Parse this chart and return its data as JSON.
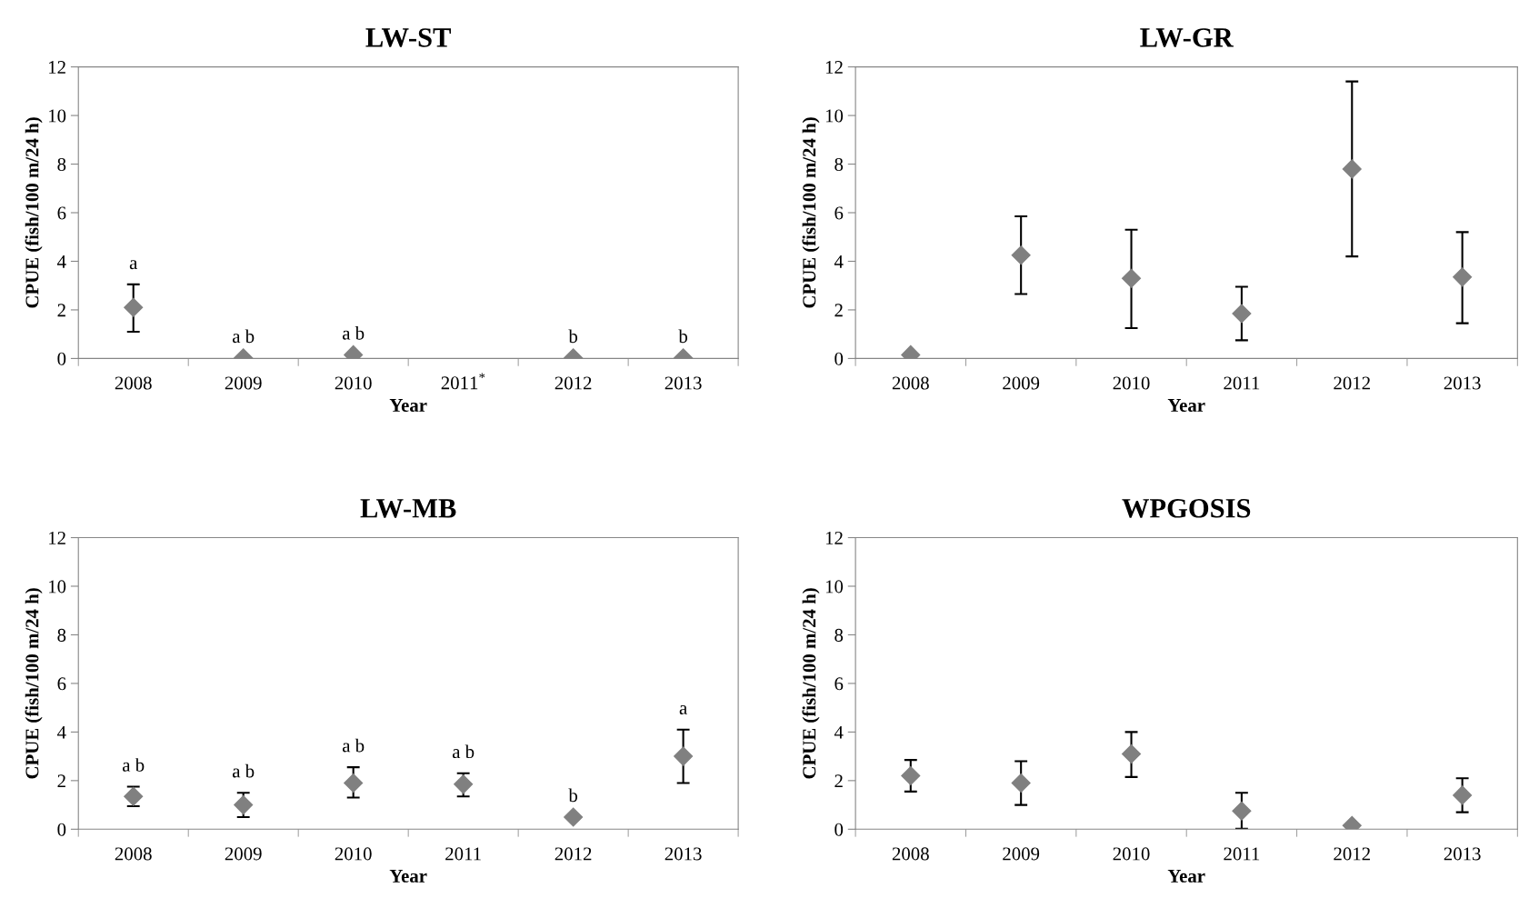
{
  "chart_data": [
    {
      "type": "scatter",
      "title": "LW-ST",
      "xlabel": "Year",
      "ylabel": "CPUE (fish/100 m/24 h)",
      "categories": [
        "2008",
        "2009",
        "2010",
        "2011$^{*}$",
        "2012",
        "2013"
      ],
      "ylim": [
        0,
        12
      ],
      "yticks": [
        0,
        2,
        4,
        6,
        8,
        10,
        12
      ],
      "marker": "diamond",
      "grid": false,
      "legend": false,
      "series": [
        {
          "color": "#808080",
          "values": [
            2.1,
            0.02,
            0.15,
            null,
            0.02,
            0.02
          ],
          "errors": [
            [
              1.1,
              3.05
            ],
            null,
            null,
            null,
            null,
            null
          ],
          "value_labels": [
            "a",
            "a b",
            "a b",
            null,
            "b",
            "b"
          ]
        }
      ]
    },
    {
      "type": "scatter",
      "title": "LW-GR",
      "xlabel": "Year",
      "ylabel": "CPUE (fish/100 m/24 h)",
      "categories": [
        "2008",
        "2009",
        "2010",
        "2011",
        "2012",
        "2013"
      ],
      "ylim": [
        0,
        12
      ],
      "yticks": [
        0,
        2,
        4,
        6,
        8,
        10,
        12
      ],
      "marker": "diamond",
      "grid": false,
      "legend": false,
      "series": [
        {
          "color": "#808080",
          "values": [
            0.15,
            4.25,
            3.3,
            1.85,
            7.8,
            3.35
          ],
          "errors": [
            null,
            [
              2.65,
              5.85
            ],
            [
              1.25,
              5.3
            ],
            [
              0.75,
              2.95
            ],
            [
              4.2,
              11.4
            ],
            [
              1.45,
              5.2
            ]
          ]
        }
      ]
    },
    {
      "type": "scatter",
      "title": "LW-MB",
      "xlabel": "Year",
      "ylabel": "CPUE (fish/100 m/24 h)",
      "categories": [
        "2008",
        "2009",
        "2010",
        "2011",
        "2012",
        "2013"
      ],
      "ylim": [
        0,
        12
      ],
      "yticks": [
        0,
        2,
        4,
        6,
        8,
        10,
        12
      ],
      "marker": "diamond",
      "grid": false,
      "legend": false,
      "series": [
        {
          "color": "#808080",
          "values": [
            1.35,
            1.0,
            1.9,
            1.85,
            0.5,
            3.0
          ],
          "errors": [
            [
              0.95,
              1.75
            ],
            [
              0.5,
              1.5
            ],
            [
              1.3,
              2.55
            ],
            [
              1.35,
              2.3
            ],
            null,
            [
              1.9,
              4.1
            ]
          ],
          "value_labels": [
            "a b",
            "a b",
            "a b",
            "a b",
            "b",
            "a"
          ]
        }
      ]
    },
    {
      "type": "scatter",
      "title": "WPGOSIS",
      "xlabel": "Year",
      "ylabel": "CPUE (fish/100 m/24 h)",
      "categories": [
        "2008",
        "2009",
        "2010",
        "2011",
        "2012",
        "2013"
      ],
      "ylim": [
        0,
        12
      ],
      "yticks": [
        0,
        2,
        4,
        6,
        8,
        10,
        12
      ],
      "marker": "diamond",
      "grid": false,
      "legend": false,
      "series": [
        {
          "color": "#808080",
          "values": [
            2.2,
            1.9,
            3.1,
            0.75,
            0.15,
            1.4
          ],
          "errors": [
            [
              1.55,
              2.85
            ],
            [
              1.0,
              2.8
            ],
            [
              2.15,
              4.0
            ],
            [
              0.02,
              1.5
            ],
            null,
            [
              0.7,
              2.1
            ]
          ]
        }
      ]
    }
  ]
}
